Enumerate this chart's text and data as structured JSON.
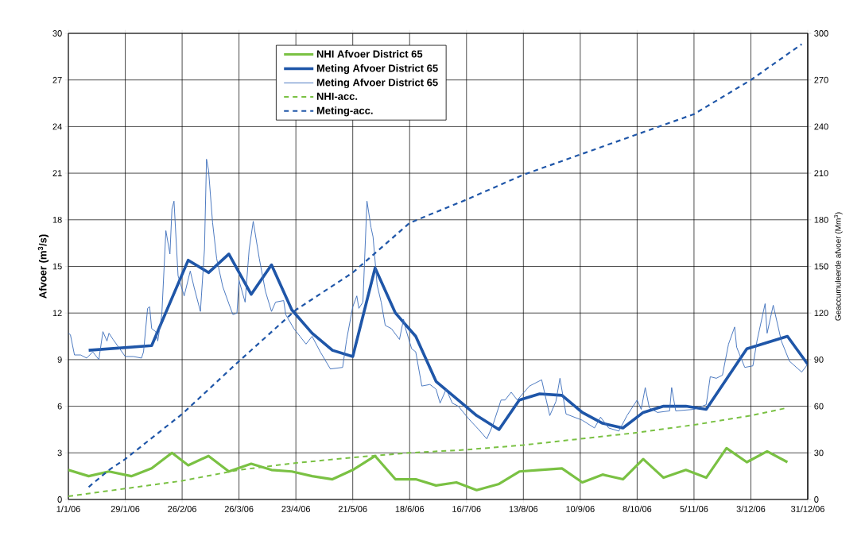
{
  "chart_data": {
    "type": "line",
    "ylabel": "Afvoer (m$^{3}$/s)",
    "y2label": "Geaccumuleerde afvoer (Mm$^{3}$)",
    "xlim": [
      "2006-01-01",
      "2006-12-31"
    ],
    "xticks": [
      {
        "value": "2006-01-01",
        "label": "1/1/06"
      },
      {
        "value": "2006-01-29",
        "label": "29/1/06"
      },
      {
        "value": "2006-02-26",
        "label": "26/2/06"
      },
      {
        "value": "2006-03-26",
        "label": "26/3/06"
      },
      {
        "value": "2006-04-23",
        "label": "23/4/06"
      },
      {
        "value": "2006-05-21",
        "label": "21/5/06"
      },
      {
        "value": "2006-06-18",
        "label": "18/6/06"
      },
      {
        "value": "2006-07-16",
        "label": "16/7/06"
      },
      {
        "value": "2006-08-13",
        "label": "13/8/06"
      },
      {
        "value": "2006-09-10",
        "label": "10/9/06"
      },
      {
        "value": "2006-10-08",
        "label": "8/10/06"
      },
      {
        "value": "2006-11-05",
        "label": "5/11/06"
      },
      {
        "value": "2006-12-03",
        "label": "3/12/06"
      },
      {
        "value": "2006-12-31",
        "label": "31/12/06"
      }
    ],
    "ylim": [
      0,
      30
    ],
    "yticks": [
      0,
      3,
      6,
      9,
      12,
      15,
      18,
      21,
      24,
      27,
      30
    ],
    "y2lim": [
      0,
      300
    ],
    "y2ticks": [
      0,
      30,
      60,
      90,
      120,
      150,
      180,
      210,
      240,
      270,
      300
    ],
    "grid": true,
    "legend": "top",
    "marker": "none",
    "series": [
      {
        "name": "NHI Afvoer District 65",
        "color": "#7ac143",
        "line_style": "solid",
        "x": [
          "2006-01-01",
          "2006-01-11",
          "2006-01-21",
          "2006-02-01",
          "2006-02-11",
          "2006-02-21",
          "2006-03-01",
          "2006-03-11",
          "2006-03-21",
          "2006-04-01",
          "2006-04-11",
          "2006-04-21",
          "2006-05-01",
          "2006-05-11",
          "2006-05-21",
          "2006-06-01",
          "2006-06-11",
          "2006-06-21",
          "2006-07-01",
          "2006-07-11",
          "2006-07-21",
          "2006-08-01",
          "2006-08-11",
          "2006-08-21",
          "2006-09-01",
          "2006-09-11",
          "2006-09-21",
          "2006-10-01",
          "2006-10-11",
          "2006-10-21",
          "2006-11-01",
          "2006-11-11",
          "2006-11-21",
          "2006-12-01",
          "2006-12-11",
          "2006-12-21"
        ],
        "values": [
          1.9,
          1.5,
          1.8,
          1.5,
          2.0,
          3.0,
          2.2,
          2.8,
          1.8,
          2.3,
          1.9,
          1.8,
          1.5,
          1.3,
          1.9,
          2.8,
          1.3,
          1.3,
          0.9,
          1.1,
          0.6,
          1.0,
          1.8,
          1.9,
          2.0,
          1.1,
          1.6,
          1.3,
          2.6,
          1.4,
          1.9,
          1.4,
          3.3,
          2.4,
          3.1,
          2.4
        ]
      },
      {
        "name": "Meting Afvoer District 65",
        "color": "#1f56a8",
        "line_style": "solid",
        "x": [
          "2006-01-11",
          "2006-02-11",
          "2006-03-01",
          "2006-03-11",
          "2006-03-21",
          "2006-04-01",
          "2006-04-11",
          "2006-04-21",
          "2006-05-01",
          "2006-05-11",
          "2006-05-21",
          "2006-06-01",
          "2006-06-11",
          "2006-06-21",
          "2006-07-01",
          "2006-07-21",
          "2006-08-01",
          "2006-08-11",
          "2006-08-21",
          "2006-09-01",
          "2006-09-11",
          "2006-09-21",
          "2006-10-01",
          "2006-10-11",
          "2006-10-21",
          "2006-11-01",
          "2006-11-11",
          "2006-12-01",
          "2006-12-21",
          "2006-12-31"
        ],
        "values": [
          9.6,
          9.9,
          15.4,
          14.6,
          15.8,
          13.2,
          15.1,
          12.2,
          10.7,
          9.6,
          9.2,
          14.9,
          12.0,
          10.5,
          7.6,
          5.4,
          4.5,
          6.4,
          6.8,
          6.7,
          5.6,
          4.9,
          4.6,
          5.6,
          6.0,
          6.0,
          5.8,
          9.7,
          10.5,
          8.7
        ]
      },
      {
        "name": "Meting Afvoer District 65",
        "color": "#3a6cba",
        "line_style": "solid",
        "x": [
          "2006-01-01",
          "2006-01-02",
          "2006-01-04",
          "2006-01-07",
          "2006-01-10",
          "2006-01-13",
          "2006-01-16",
          "2006-01-18",
          "2006-01-20",
          "2006-01-21",
          "2006-01-23",
          "2006-01-29",
          "2006-02-02",
          "2006-02-06",
          "2006-02-07",
          "2006-02-09",
          "2006-02-10",
          "2006-02-11",
          "2006-02-13",
          "2006-02-14",
          "2006-02-16",
          "2006-02-18",
          "2006-02-20",
          "2006-02-21",
          "2006-02-22",
          "2006-02-24",
          "2006-02-27",
          "2006-03-02",
          "2006-03-04",
          "2006-03-07",
          "2006-03-09",
          "2006-03-10",
          "2006-03-11",
          "2006-03-13",
          "2006-03-15",
          "2006-03-18",
          "2006-03-21",
          "2006-03-23",
          "2006-03-25",
          "2006-03-26",
          "2006-03-29",
          "2006-03-31",
          "2006-04-02",
          "2006-04-05",
          "2006-04-08",
          "2006-04-11",
          "2006-04-13",
          "2006-04-17",
          "2006-04-18",
          "2006-04-22",
          "2006-04-25",
          "2006-04-28",
          "2006-05-01",
          "2006-05-05",
          "2006-05-10",
          "2006-05-16",
          "2006-05-18",
          "2006-05-21",
          "2006-05-23",
          "2006-05-24",
          "2006-05-26",
          "2006-05-28",
          "2006-05-30",
          "2006-05-31",
          "2006-06-02",
          "2006-06-04",
          "2006-06-06",
          "2006-06-09",
          "2006-06-13",
          "2006-06-15",
          "2006-06-16",
          "2006-06-19",
          "2006-06-21",
          "2006-06-24",
          "2006-06-28",
          "2006-07-01",
          "2006-07-03",
          "2006-07-06",
          "2006-07-09",
          "2006-07-12",
          "2006-07-17",
          "2006-07-22",
          "2006-07-26",
          "2006-07-29",
          "2006-08-02",
          "2006-08-04",
          "2006-08-07",
          "2006-08-10",
          "2006-08-16",
          "2006-08-22",
          "2006-08-26",
          "2006-08-29",
          "2006-08-31",
          "2006-09-03",
          "2006-09-11",
          "2006-09-17",
          "2006-09-20",
          "2006-09-24",
          "2006-09-29",
          "2006-10-03",
          "2006-10-08",
          "2006-10-10",
          "2006-10-12",
          "2006-10-14",
          "2006-10-18",
          "2006-10-24",
          "2006-10-25",
          "2006-10-27",
          "2006-11-05",
          "2006-11-11",
          "2006-11-13",
          "2006-11-16",
          "2006-11-19",
          "2006-11-22",
          "2006-11-25",
          "2006-11-26",
          "2006-11-30",
          "2006-12-04",
          "2006-12-06",
          "2006-12-10",
          "2006-12-11",
          "2006-12-14",
          "2006-12-18",
          "2006-12-22",
          "2006-12-28",
          "2006-12-31"
        ],
        "values": [
          10.7,
          10.6,
          9.3,
          9.3,
          9.1,
          9.5,
          9.0,
          10.8,
          10.2,
          10.7,
          10.3,
          9.2,
          9.2,
          9.1,
          9.5,
          12.3,
          12.4,
          11.0,
          10.8,
          10.2,
          11.9,
          17.3,
          15.8,
          18.7,
          19.2,
          14.4,
          13.1,
          14.7,
          13.6,
          12.1,
          16.1,
          21.9,
          21.2,
          17.8,
          15.5,
          13.7,
          12.6,
          11.9,
          12.0,
          14.1,
          12.7,
          16.1,
          17.9,
          15.5,
          13.4,
          12.1,
          12.7,
          12.8,
          11.9,
          11.0,
          10.5,
          10.0,
          10.5,
          9.5,
          8.4,
          8.5,
          10.3,
          12.4,
          13.1,
          12.3,
          12.7,
          19.2,
          17.5,
          16.9,
          13.8,
          12.7,
          11.2,
          11.0,
          10.3,
          11.6,
          11.0,
          9.7,
          9.5,
          7.3,
          7.4,
          7.1,
          6.2,
          7.1,
          6.2,
          6.0,
          5.2,
          4.5,
          3.9,
          4.8,
          6.4,
          6.4,
          6.9,
          6.4,
          7.3,
          7.7,
          5.4,
          6.3,
          7.8,
          5.5,
          5.1,
          4.6,
          5.3,
          4.6,
          4.4,
          5.4,
          6.4,
          5.8,
          7.2,
          5.9,
          5.6,
          5.7,
          7.2,
          5.7,
          5.8,
          6.1,
          7.9,
          7.8,
          8.0,
          10.0,
          11.1,
          9.8,
          8.5,
          8.6,
          10.2,
          12.6,
          10.7,
          12.5,
          10.2,
          8.9,
          8.2,
          8.7
        ]
      },
      {
        "name": "NHI-acc.",
        "color": "#7ac143",
        "line_style": "dashed",
        "axis": "y2",
        "x": [
          "2006-01-01",
          "2006-01-29",
          "2006-02-26",
          "2006-03-26",
          "2006-04-23",
          "2006-05-21",
          "2006-06-18",
          "2006-07-16",
          "2006-08-13",
          "2006-09-10",
          "2006-10-08",
          "2006-11-05",
          "2006-12-03",
          "2006-12-21"
        ],
        "values": [
          2,
          7,
          12,
          19,
          23.5,
          27,
          30,
          32,
          35,
          39,
          43,
          48,
          54,
          59
        ]
      },
      {
        "name": "Meting-acc.",
        "color": "#1f56a8",
        "line_style": "dashed",
        "axis": "y2",
        "x": [
          "2006-01-11",
          "2006-01-21",
          "2006-01-29",
          "2006-02-26",
          "2006-03-26",
          "2006-04-23",
          "2006-05-21",
          "2006-06-18",
          "2006-07-16",
          "2006-08-13",
          "2006-09-10",
          "2006-10-08",
          "2006-11-05",
          "2006-12-03",
          "2006-12-28"
        ],
        "values": [
          8,
          19,
          26,
          55,
          89,
          122,
          146,
          178,
          193,
          209,
          222,
          235,
          248,
          270,
          293
        ]
      }
    ]
  }
}
